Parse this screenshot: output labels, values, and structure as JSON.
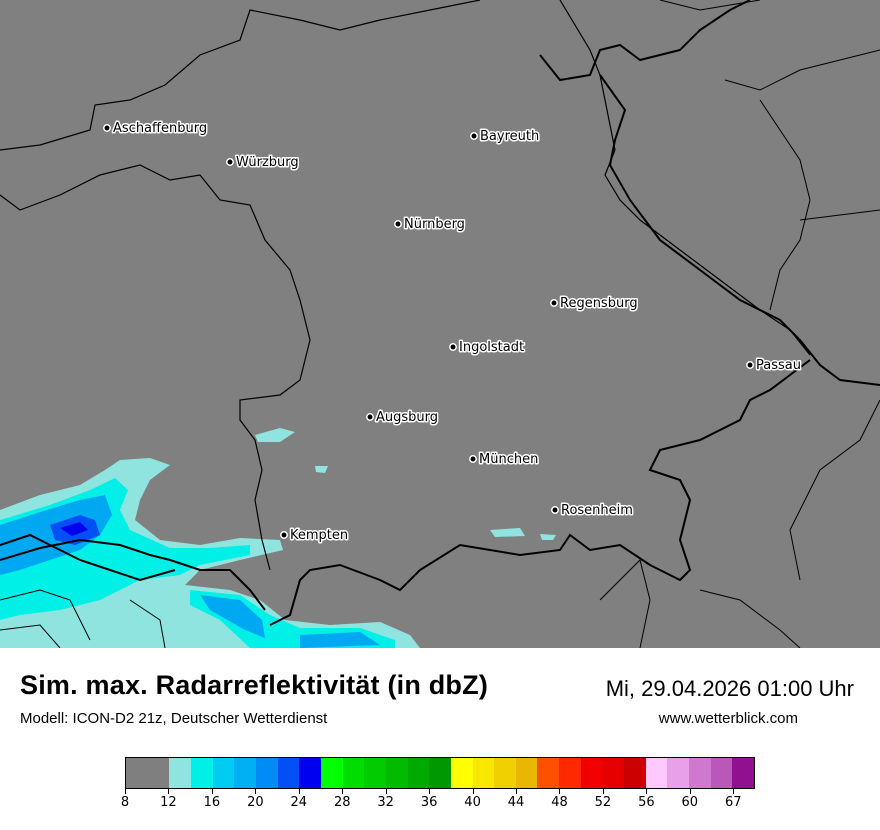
{
  "header": {
    "title": "Sim. max. Radarreflektivität (in dbZ)",
    "subtitle": "Modell: ICON-D2 21z, Deutscher Wetterdienst",
    "datetime": "Mi, 29.04.2026 01:00 Uhr",
    "website": "www.wetterblick.com"
  },
  "map": {
    "background_color": "#808080",
    "cities": [
      {
        "name": "Aschaffenburg"
      },
      {
        "name": "Würzburg"
      },
      {
        "name": "Bayreuth"
      },
      {
        "name": "Nürnberg"
      },
      {
        "name": "Regensburg"
      },
      {
        "name": "Ingolstadt"
      },
      {
        "name": "Passau"
      },
      {
        "name": "Augsburg"
      },
      {
        "name": "München"
      },
      {
        "name": "Rosenheim"
      },
      {
        "name": "Kempten"
      }
    ]
  },
  "legend": {
    "bins": [
      {
        "from": 8,
        "to": 12,
        "color": "#7f7f7f"
      },
      {
        "from": 12,
        "to": 14,
        "color": "#90e4e0"
      },
      {
        "from": 14,
        "to": 16,
        "color": "#00f0e8"
      },
      {
        "from": 16,
        "to": 18,
        "color": "#00ccf0"
      },
      {
        "from": 18,
        "to": 20,
        "color": "#00b0f2"
      },
      {
        "from": 20,
        "to": 22,
        "color": "#008cf4"
      },
      {
        "from": 22,
        "to": 24,
        "color": "#0050f6"
      },
      {
        "from": 24,
        "to": 26,
        "color": "#0000f0"
      },
      {
        "from": 26,
        "to": 28,
        "color": "#00ff00"
      },
      {
        "from": 28,
        "to": 30,
        "color": "#00dd00"
      },
      {
        "from": 30,
        "to": 32,
        "color": "#00cc00"
      },
      {
        "from": 32,
        "to": 34,
        "color": "#00bb00"
      },
      {
        "from": 34,
        "to": 36,
        "color": "#00aa00"
      },
      {
        "from": 36,
        "to": 38,
        "color": "#009800"
      },
      {
        "from": 38,
        "to": 40,
        "color": "#ffff00"
      },
      {
        "from": 40,
        "to": 42,
        "color": "#f8e800"
      },
      {
        "from": 42,
        "to": 44,
        "color": "#f0d000"
      },
      {
        "from": 44,
        "to": 46,
        "color": "#e8b800"
      },
      {
        "from": 46,
        "to": 48,
        "color": "#ff5000"
      },
      {
        "from": 48,
        "to": 50,
        "color": "#ff2800"
      },
      {
        "from": 50,
        "to": 52,
        "color": "#f20000"
      },
      {
        "from": 52,
        "to": 54,
        "color": "#e60000"
      },
      {
        "from": 54,
        "to": 56,
        "color": "#cc0000"
      },
      {
        "from": 56,
        "to": 58,
        "color": "#ffc8ff"
      },
      {
        "from": 58,
        "to": 60,
        "color": "#e8a0e8"
      },
      {
        "from": 60,
        "to": 62,
        "color": "#d078d0"
      },
      {
        "from": 62,
        "to": 64,
        "color": "#b858b8"
      },
      {
        "from": 64,
        "to": 67,
        "color": "#901090"
      }
    ],
    "tick_labels": [
      "8",
      "12",
      "16",
      "20",
      "24",
      "28",
      "32",
      "36",
      "40",
      "44",
      "48",
      "52",
      "56",
      "60",
      "67"
    ]
  }
}
